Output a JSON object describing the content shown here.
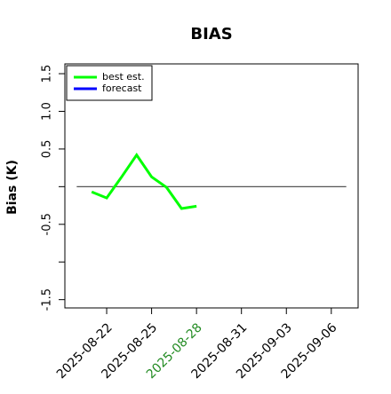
{
  "chart_data": {
    "type": "line",
    "title": "BIAS",
    "ylabel": "Bias (K)",
    "x": [
      "2025-08-21",
      "2025-08-22",
      "2025-08-23",
      "2025-08-24",
      "2025-08-25",
      "2025-08-26",
      "2025-08-27",
      "2025-08-28"
    ],
    "series": [
      {
        "name": "best est.",
        "color": "#00ff00",
        "values": [
          -0.07,
          -0.15,
          0.13,
          0.42,
          0.13,
          -0.01,
          -0.29,
          -0.26
        ]
      },
      {
        "name": "forecast",
        "color": "#0000ff",
        "values": [
          null,
          null,
          null,
          null,
          null,
          null,
          null,
          null
        ]
      }
    ],
    "ylim": [
      -1.61,
      1.63
    ],
    "yticks": [
      -1.5,
      {
        "value": -1.0,
        "label": null
      },
      -0.5,
      {
        "value": 0.0,
        "label": null
      },
      0.5,
      {
        "value": 1.0,
        "label": "1.0"
      },
      1.5
    ],
    "xlim": [
      "2025-08-19T05:00",
      "2025-09-07T19:00"
    ],
    "xticks": [
      "2025-08-22",
      "2025-08-25",
      "2025-08-28",
      "2025-08-31",
      "2025-09-03",
      "2025-09-06"
    ],
    "highlight_xtick": 2,
    "highlight_color": "#228b22",
    "hline": {
      "y": 0,
      "x": [
        "2025-08-20",
        "2025-09-07"
      ],
      "color": "#555555"
    },
    "legend": "top-left"
  }
}
